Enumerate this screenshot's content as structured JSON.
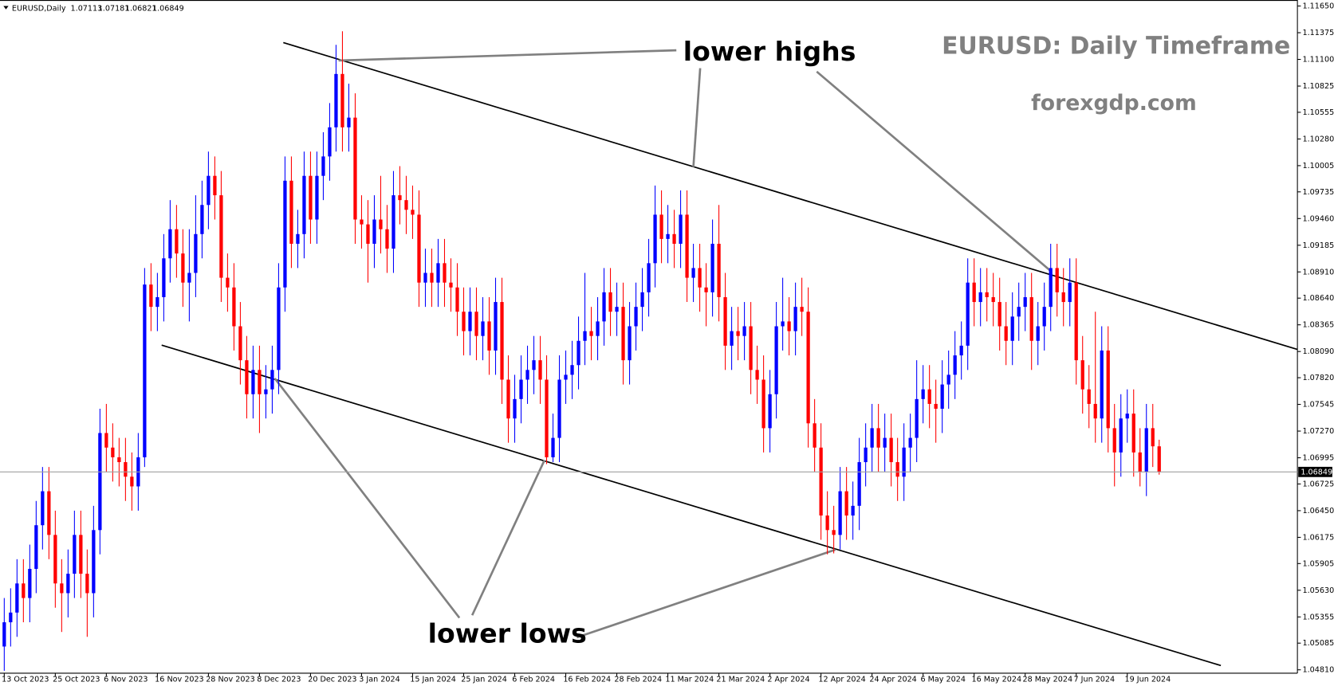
{
  "chart_data": {
    "type": "candlestick",
    "title": "EURUSD: Daily Timeframe",
    "subtitle": "forexgdp.com",
    "symbol": "EURUSD,Daily",
    "annotations": [
      "lower highs",
      "lower lows"
    ],
    "up_color": "#0000ff",
    "down_color": "#ff0000",
    "categories": [
      "13 Oct 2023",
      null,
      null,
      null,
      null,
      null,
      null,
      null,
      "25 Oct 2023",
      null,
      null,
      null,
      null,
      null,
      null,
      null,
      "6 Nov 2023",
      null,
      null,
      null,
      null,
      null,
      null,
      null,
      "16 Nov 2023",
      null,
      null,
      null,
      null,
      null,
      null,
      null,
      "28 Nov 2023",
      null,
      null,
      null,
      null,
      null,
      null,
      null,
      "8 Dec 2023",
      null,
      null,
      null,
      null,
      null,
      null,
      null,
      "20 Dec 2023",
      null,
      null,
      null,
      null,
      null,
      null,
      null,
      "3 Jan 2024",
      null,
      null,
      null,
      null,
      null,
      null,
      null,
      "15 Jan 2024",
      null,
      null,
      null,
      null,
      null,
      null,
      null,
      "25 Jan 2024",
      null,
      null,
      null,
      null,
      null,
      null,
      null,
      "6 Feb 2024",
      null,
      null,
      null,
      null,
      null,
      null,
      null,
      "16 Feb 2024",
      null,
      null,
      null,
      null,
      null,
      null,
      null,
      "28 Feb 2024",
      null,
      null,
      null,
      null,
      null,
      null,
      null,
      "11 Mar 2024",
      null,
      null,
      null,
      null,
      null,
      null,
      null,
      "21 Mar 2024",
      null,
      null,
      null,
      null,
      null,
      null,
      null,
      "2 Apr 2024",
      null,
      null,
      null,
      null,
      null,
      null,
      null,
      "12 Apr 2024",
      null,
      null,
      null,
      null,
      null,
      null,
      null,
      "24 Apr 2024",
      null,
      null,
      null,
      null,
      null,
      null,
      null,
      "6 May 2024",
      null,
      null,
      null,
      null,
      null,
      null,
      null,
      "16 May 2024",
      null,
      null,
      null,
      null,
      null,
      null,
      null,
      "28 May 2024",
      null,
      null,
      null,
      null,
      null,
      null,
      null,
      "7 Jun 2024",
      null,
      null,
      null,
      null,
      null,
      null,
      null,
      "19 Jun 2024",
      null,
      null,
      null,
      null,
      null
    ],
    "open": [
      1.0505,
      1.053,
      1.054,
      1.057,
      1.0555,
      1.0585,
      1.063,
      1.0665,
      1.062,
      1.057,
      1.056,
      1.058,
      1.062,
      1.058,
      1.056,
      1.0625,
      1.0725,
      1.071,
      1.07,
      1.0695,
      1.068,
      1.067,
      1.07,
      1.0878,
      1.0855,
      1.0865,
      1.0905,
      1.0935,
      1.091,
      1.088,
      1.089,
      1.093,
      1.096,
      1.099,
      1.097,
      1.0885,
      1.0875,
      1.0835,
      1.08,
      1.0765,
      1.079,
      1.0765,
      1.077,
      1.079,
      1.0875,
      1.0985,
      1.092,
      1.093,
      1.099,
      1.0945,
      1.099,
      1.101,
      1.104,
      1.1095,
      1.104,
      1.105,
      1.0945,
      1.094,
      1.092,
      1.0945,
      1.0935,
      1.0915,
      1.097,
      1.0965,
      1.0955,
      1.095,
      1.088,
      1.089,
      1.088,
      1.09,
      1.088,
      1.0875,
      1.085,
      1.083,
      1.085,
      1.0825,
      1.084,
      1.081,
      1.086,
      1.078,
      1.074,
      1.076,
      1.078,
      1.079,
      1.08,
      1.078,
      1.07,
      1.072,
      1.078,
      1.0785,
      1.0795,
      1.082,
      1.083,
      1.0825,
      1.084,
      1.087,
      1.085,
      1.0855,
      1.08,
      1.0835,
      1.0855,
      1.087,
      1.09,
      1.095,
      1.0925,
      1.093,
      1.092,
      1.095,
      1.0885,
      1.0895,
      1.0875,
      1.087,
      1.092,
      1.0865,
      1.0815,
      1.083,
      1.0825,
      1.0835,
      1.079,
      1.078,
      1.073,
      1.0765,
      1.0835,
      1.084,
      1.083,
      1.0855,
      1.085,
      1.0735,
      1.071,
      1.064,
      1.0625,
      1.062,
      1.0665,
      1.064,
      1.065,
      1.0695,
      1.071,
      1.073,
      1.071,
      1.072,
      1.0695,
      1.068,
      1.071,
      1.072,
      1.076,
      1.077,
      1.0755,
      1.075,
      1.0775,
      1.0785,
      1.0805,
      1.0815,
      1.088,
      1.086,
      1.087,
      1.0865,
      1.086,
      1.0835,
      1.082,
      1.0845,
      1.0855,
      1.0865,
      1.082,
      1.0835,
      1.0855,
      1.0895,
      1.087,
      1.086,
      1.088,
      1.08,
      1.077,
      1.0755,
      1.074,
      1.081,
      1.073,
      1.0705,
      1.074,
      1.0745,
      1.0705,
      1.0685,
      1.073,
      1.07113
    ],
    "high": [
      1.0555,
      1.0565,
      1.0595,
      1.0595,
      1.061,
      1.0655,
      1.069,
      1.069,
      1.0645,
      1.0595,
      1.0605,
      1.0645,
      1.0645,
      1.0605,
      1.065,
      1.075,
      1.0755,
      1.0735,
      1.072,
      1.072,
      1.0705,
      1.0725,
      1.0895,
      1.09,
      1.089,
      1.093,
      1.0965,
      1.096,
      1.0935,
      1.0935,
      1.097,
      1.0985,
      1.1015,
      1.101,
      1.0995,
      1.091,
      1.09,
      1.086,
      1.0825,
      1.0815,
      1.0815,
      1.0795,
      1.0815,
      1.09,
      1.101,
      1.101,
      1.0955,
      1.1015,
      1.1015,
      1.1015,
      1.1035,
      1.1065,
      1.1125,
      1.1139,
      1.1085,
      1.1075,
      1.097,
      1.0965,
      1.097,
      1.099,
      1.096,
      1.0995,
      1.1,
      1.099,
      1.098,
      1.0975,
      1.0915,
      1.0915,
      1.0925,
      1.0925,
      1.0905,
      1.09,
      1.0875,
      1.0875,
      1.0875,
      1.0865,
      1.0865,
      1.0885,
      1.0885,
      1.0805,
      1.0785,
      1.0805,
      1.0815,
      1.0825,
      1.0825,
      1.0805,
      1.0745,
      1.0805,
      1.081,
      1.082,
      1.0845,
      1.089,
      1.0855,
      1.0865,
      1.0895,
      1.0895,
      1.088,
      1.088,
      1.086,
      1.088,
      1.0895,
      1.0925,
      1.098,
      1.0975,
      1.096,
      1.0955,
      1.0975,
      1.0975,
      1.092,
      1.092,
      1.09,
      1.0945,
      1.096,
      1.089,
      1.0855,
      1.0855,
      1.086,
      1.086,
      1.0815,
      1.0805,
      1.079,
      1.086,
      1.0885,
      1.0865,
      1.088,
      1.0885,
      1.0875,
      1.076,
      1.0735,
      1.0665,
      1.065,
      1.069,
      1.069,
      1.0675,
      1.072,
      1.0735,
      1.0755,
      1.0755,
      1.0745,
      1.0745,
      1.072,
      1.0735,
      1.0745,
      1.08,
      1.0795,
      1.0795,
      1.078,
      1.08,
      1.081,
      1.083,
      1.084,
      1.0905,
      1.0905,
      1.0895,
      1.0895,
      1.089,
      1.0885,
      1.086,
      1.087,
      1.088,
      1.089,
      1.089,
      1.086,
      1.088,
      1.092,
      1.092,
      1.0895,
      1.0905,
      1.0905,
      1.0825,
      1.0795,
      1.085,
      1.0835,
      1.0835,
      1.0755,
      1.0765,
      1.077,
      1.077,
      1.073,
      1.0755,
      1.0755,
      1.07181
    ],
    "low": [
      1.048,
      1.0505,
      1.0515,
      1.053,
      1.053,
      1.056,
      1.0605,
      1.0595,
      1.0545,
      1.052,
      1.0535,
      1.0555,
      1.0555,
      1.0515,
      1.0535,
      1.06,
      1.0685,
      1.0675,
      1.067,
      1.0655,
      1.0645,
      1.0645,
      1.069,
      1.083,
      1.083,
      1.084,
      1.088,
      1.0885,
      1.0855,
      1.084,
      1.0865,
      1.0905,
      1.0935,
      1.0945,
      1.086,
      1.085,
      1.081,
      1.0775,
      1.074,
      1.074,
      1.0725,
      1.074,
      1.0745,
      1.0765,
      1.085,
      1.0895,
      1.0895,
      1.0905,
      1.092,
      1.092,
      1.0965,
      1.0985,
      1.1015,
      1.1015,
      1.1015,
      1.092,
      1.0915,
      1.088,
      1.0895,
      1.091,
      1.089,
      1.089,
      1.094,
      1.093,
      1.0925,
      1.0855,
      1.0855,
      1.0855,
      1.0855,
      1.0855,
      1.085,
      1.0825,
      1.0805,
      1.0805,
      1.08,
      1.08,
      1.0785,
      1.0785,
      1.0755,
      1.0715,
      1.0715,
      1.0735,
      1.0755,
      1.0765,
      1.0755,
      1.0693,
      1.0695,
      1.0695,
      1.0755,
      1.076,
      1.077,
      1.0795,
      1.08,
      1.08,
      1.0815,
      1.0825,
      1.0825,
      1.0775,
      1.0775,
      1.081,
      1.083,
      1.0845,
      1.0875,
      1.09,
      1.09,
      1.0895,
      1.0895,
      1.086,
      1.086,
      1.085,
      1.0835,
      1.0845,
      1.084,
      1.079,
      1.079,
      1.08,
      1.08,
      1.0765,
      1.0755,
      1.0705,
      1.0705,
      1.074,
      1.081,
      1.0805,
      1.0805,
      1.0825,
      1.071,
      1.0685,
      1.0615,
      1.06,
      1.0601,
      1.0605,
      1.0615,
      1.0615,
      1.0625,
      1.067,
      1.0685,
      1.0685,
      1.0685,
      1.067,
      1.0655,
      1.0655,
      1.0685,
      1.0695,
      1.0735,
      1.073,
      1.0715,
      1.0725,
      1.075,
      1.076,
      1.078,
      1.079,
      1.0835,
      1.0835,
      1.084,
      1.0835,
      1.081,
      1.0795,
      1.0795,
      1.082,
      1.083,
      1.079,
      1.0795,
      1.081,
      1.083,
      1.0845,
      1.0835,
      1.0835,
      1.0775,
      1.0745,
      1.073,
      1.0715,
      1.0715,
      1.0705,
      1.067,
      1.068,
      1.0715,
      1.068,
      1.067,
      1.066,
      1.069,
      1.06821
    ],
    "close": [
      1.053,
      1.054,
      1.057,
      1.0555,
      1.0585,
      1.063,
      1.0665,
      1.062,
      1.057,
      1.056,
      1.058,
      1.062,
      1.058,
      1.056,
      1.0625,
      1.0725,
      1.071,
      1.07,
      1.0695,
      1.068,
      1.067,
      1.07,
      1.0878,
      1.0855,
      1.0865,
      1.0905,
      1.0935,
      1.091,
      1.088,
      1.089,
      1.093,
      1.096,
      1.099,
      1.097,
      1.0885,
      1.0875,
      1.0835,
      1.08,
      1.0765,
      1.079,
      1.0765,
      1.077,
      1.079,
      1.0875,
      1.0985,
      1.092,
      1.093,
      1.099,
      1.0945,
      1.099,
      1.101,
      1.104,
      1.1095,
      1.104,
      1.105,
      1.0945,
      1.094,
      1.092,
      1.0945,
      1.0935,
      1.0915,
      1.097,
      1.0965,
      1.0955,
      1.095,
      1.088,
      1.089,
      1.088,
      1.09,
      1.088,
      1.0875,
      1.085,
      1.083,
      1.085,
      1.0825,
      1.084,
      1.081,
      1.086,
      1.078,
      1.074,
      1.076,
      1.078,
      1.079,
      1.08,
      1.078,
      1.07,
      1.072,
      1.078,
      1.0785,
      1.0795,
      1.082,
      1.083,
      1.0825,
      1.084,
      1.087,
      1.085,
      1.0855,
      1.08,
      1.0835,
      1.0855,
      1.087,
      1.09,
      1.095,
      1.0925,
      1.093,
      1.092,
      1.095,
      1.0885,
      1.0895,
      1.0875,
      1.087,
      1.092,
      1.0865,
      1.0815,
      1.083,
      1.0825,
      1.0835,
      1.079,
      1.078,
      1.073,
      1.0765,
      1.0835,
      1.084,
      1.083,
      1.0855,
      1.085,
      1.0735,
      1.071,
      1.064,
      1.0625,
      1.062,
      1.0665,
      1.064,
      1.065,
      1.0695,
      1.071,
      1.073,
      1.071,
      1.072,
      1.0695,
      1.068,
      1.071,
      1.072,
      1.076,
      1.077,
      1.0755,
      1.075,
      1.0775,
      1.0785,
      1.0805,
      1.0815,
      1.088,
      1.086,
      1.087,
      1.0865,
      1.086,
      1.0835,
      1.082,
      1.0845,
      1.0855,
      1.0865,
      1.082,
      1.0835,
      1.0855,
      1.0895,
      1.087,
      1.086,
      1.088,
      1.08,
      1.077,
      1.0755,
      1.074,
      1.081,
      1.073,
      1.0705,
      1.074,
      1.0745,
      1.0705,
      1.0685,
      1.073,
      1.07113,
      1.06849
    ],
    "ylim": [
      1.04775,
      1.11712
    ],
    "yticks": [
      {
        "value": 1.1165,
        "label": "1.11650"
      },
      1.11375,
      {
        "value": 1.111,
        "label": "1.11100"
      },
      1.10825,
      1.10555,
      {
        "value": 1.1028,
        "label": "1.10280"
      },
      1.10005,
      1.09735,
      {
        "value": 1.0946,
        "label": "1.09460"
      },
      1.09185,
      {
        "value": 1.0891,
        "label": "1.08910"
      },
      {
        "value": 1.0864,
        "label": "1.08640"
      },
      1.08365,
      {
        "value": 1.0809,
        "label": "1.08090"
      },
      {
        "value": 1.0782,
        "label": "1.07820"
      },
      1.07545,
      {
        "value": 1.0727,
        "label": "1.07270"
      },
      1.06995,
      1.06725,
      {
        "value": 1.0645,
        "label": "1.06450"
      },
      1.06175,
      1.05905,
      {
        "value": 1.0563,
        "label": "1.05630"
      },
      1.05355,
      1.05085,
      {
        "value": 1.0481,
        "label": "1.04810"
      }
    ]
  }
}
